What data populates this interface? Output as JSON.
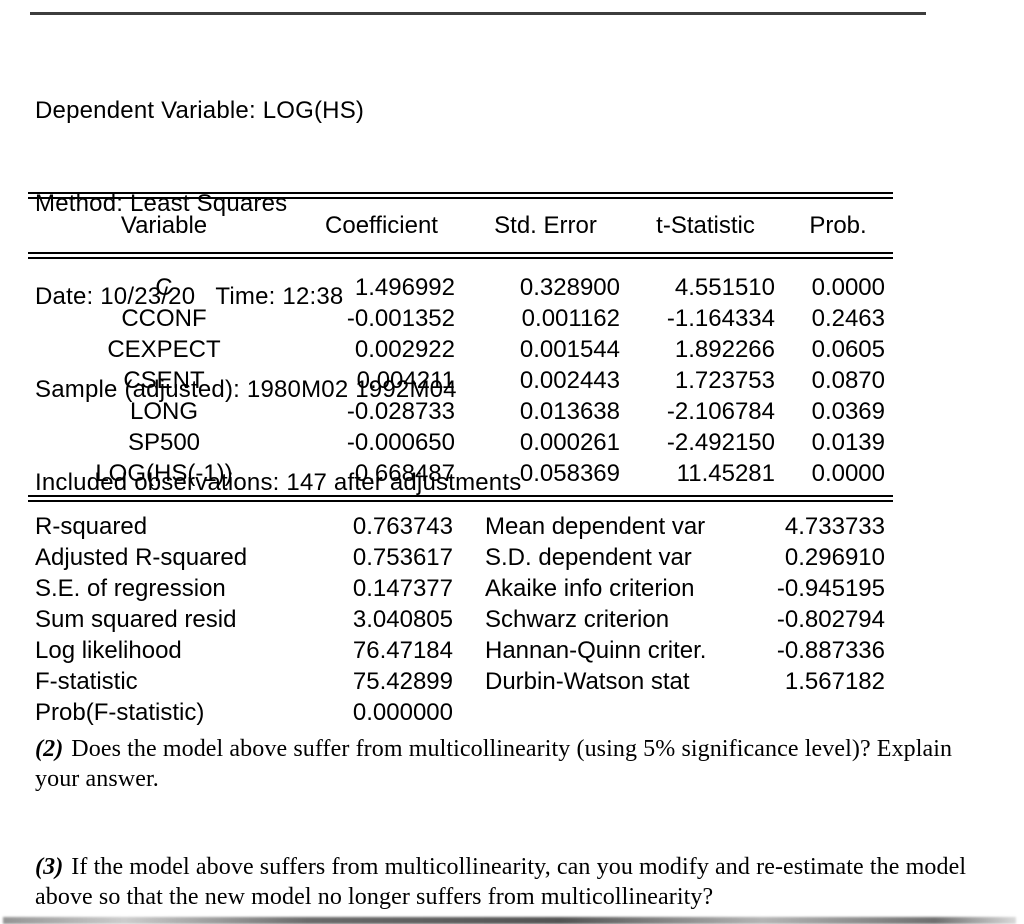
{
  "output": {
    "header_lines": [
      "Dependent Variable: LOG(HS)",
      "Method: Least Squares",
      "Date: 10/23/20   Time: 12:38",
      "Sample (adjusted): 1980M02 1992M04",
      "Included observations: 147 after adjustments"
    ],
    "table": {
      "columns": [
        "Variable",
        "Coefficient",
        "Std. Error",
        "t-Statistic",
        "Prob."
      ],
      "rows": [
        {
          "variable": "C",
          "coefficient": "1.496992",
          "std_error": "0.328900",
          "t_statistic": "4.551510",
          "prob": "0.0000"
        },
        {
          "variable": "CCONF",
          "coefficient": "-0.001352",
          "std_error": "0.001162",
          "t_statistic": "-1.164334",
          "prob": "0.2463"
        },
        {
          "variable": "CEXPECT",
          "coefficient": "0.002922",
          "std_error": "0.001544",
          "t_statistic": "1.892266",
          "prob": "0.0605"
        },
        {
          "variable": "CSENT",
          "coefficient": "0.004211",
          "std_error": "0.002443",
          "t_statistic": "1.723753",
          "prob": "0.0870"
        },
        {
          "variable": "LONG",
          "coefficient": "-0.028733",
          "std_error": "0.013638",
          "t_statistic": "-2.106784",
          "prob": "0.0369"
        },
        {
          "variable": "SP500",
          "coefficient": "-0.000650",
          "std_error": "0.000261",
          "t_statistic": "-2.492150",
          "prob": "0.0139"
        },
        {
          "variable": "LOG(HS(-1))",
          "coefficient": "0.668487",
          "std_error": "0.058369",
          "t_statistic": "11.45281",
          "prob": "0.0000"
        }
      ]
    },
    "summary_rows": [
      {
        "l_label": "R-squared",
        "l_value": "0.763743",
        "r_label": "Mean dependent var",
        "r_value": "4.733733"
      },
      {
        "l_label": "Adjusted R-squared",
        "l_value": "0.753617",
        "r_label": "S.D. dependent var",
        "r_value": "0.296910"
      },
      {
        "l_label": "S.E. of regression",
        "l_value": "0.147377",
        "r_label": "Akaike info criterion",
        "r_value": "-0.945195"
      },
      {
        "l_label": "Sum squared resid",
        "l_value": "3.040805",
        "r_label": "Schwarz criterion",
        "r_value": "-0.802794"
      },
      {
        "l_label": "Log likelihood",
        "l_value": "76.47184",
        "r_label": "Hannan-Quinn criter.",
        "r_value": "-0.887336"
      },
      {
        "l_label": "F-statistic",
        "l_value": "75.42899",
        "r_label": "Durbin-Watson stat",
        "r_value": "1.567182"
      },
      {
        "l_label": "Prob(F-statistic)",
        "l_value": "0.000000",
        "r_label": "",
        "r_value": ""
      }
    ]
  },
  "questions": [
    {
      "label": "(2)",
      "line1": "Does the model above suffer from multicollinearity (using 5% significance level)? Explain",
      "line2": "your answer."
    },
    {
      "label": "(3)",
      "line1": "If the model above suffers from multicollinearity, can you modify and re-estimate the model",
      "line2": "above so that the new model no longer suffers from multicollinearity?"
    }
  ]
}
